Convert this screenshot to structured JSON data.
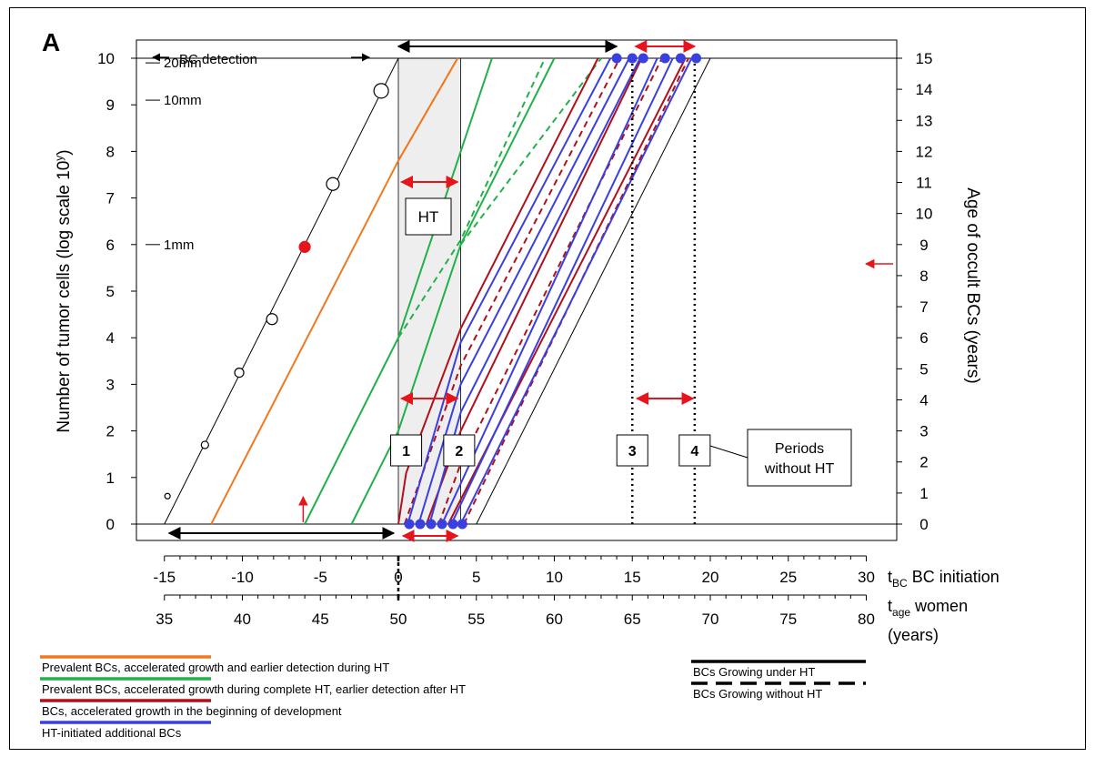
{
  "panel_label": "A",
  "chart_data": {
    "type": "line",
    "left_axis": {
      "label_main": "Number of tumor cells (log scale 10",
      "label_sup": "y",
      "label_end": ")",
      "range": [
        0,
        10
      ],
      "ticks": [
        "0",
        "1",
        "2",
        "3",
        "4",
        "5",
        "6",
        "7",
        "8",
        "9",
        "10"
      ]
    },
    "right_axis": {
      "label": "Age of occult BCs (years)",
      "range": [
        0,
        15
      ],
      "ticks": [
        "0",
        "1",
        "2",
        "3",
        "4",
        "5",
        "6",
        "7",
        "8",
        "9",
        "10",
        "11",
        "12",
        "13",
        "14",
        "15"
      ]
    },
    "x_axis_initiation": {
      "label_t": "t",
      "label_sub": "BC",
      "label_rest": " BC initiation",
      "range": [
        -15,
        30
      ],
      "ticks": [
        "-15",
        "-10",
        "-5",
        "0",
        "5",
        "10",
        "15",
        "20",
        "25",
        "30"
      ]
    },
    "x_axis_age": {
      "label_t": "t",
      "label_sub": "age",
      "label_rest": " women",
      "label_line2": "(years)",
      "ticks": [
        "35",
        "40",
        "45",
        "50",
        "55",
        "60",
        "65",
        "70",
        "75",
        "80"
      ]
    },
    "size_markers": [
      {
        "label": "20mm",
        "y": 9.9
      },
      {
        "label": "10mm",
        "y": 9.1
      },
      {
        "label": "1mm",
        "y": 6.0
      }
    ],
    "annotations": {
      "bc_detection": "BC  detection",
      "ht": "HT",
      "periods": [
        "Periods",
        "without HT"
      ],
      "numbered_boxes": [
        "1",
        "2",
        "3",
        "4"
      ]
    },
    "reference_growth_points": [
      {
        "x": -14.8,
        "y": 0.6,
        "r": 3
      },
      {
        "x": -12.4,
        "y": 1.7,
        "r": 4
      },
      {
        "x": -10.2,
        "y": 3.25,
        "r": 5
      },
      {
        "x": -8.1,
        "y": 4.4,
        "r": 6
      },
      {
        "x": -6.0,
        "y": 5.95,
        "r": 6,
        "filled": true
      },
      {
        "x": -4.2,
        "y": 7.3,
        "r": 7
      },
      {
        "x": -1.1,
        "y": 9.3,
        "r": 8
      }
    ],
    "series": [
      {
        "color": "#000000",
        "lines": [
          {
            "points": [
              [
                -15,
                0
              ],
              [
                0,
                10
              ]
            ]
          },
          {
            "points": [
              [
                5,
                0
              ],
              [
                20,
                10
              ]
            ]
          }
        ]
      },
      {
        "color": "#f07820",
        "lines": [
          {
            "points": [
              [
                -12,
                0
              ],
              [
                0,
                7.8
              ],
              [
                3.8,
                10
              ]
            ]
          },
          {
            "points": [
              [
                0,
                7.8
              ],
              [
                3.8,
                10
              ]
            ],
            "dashed": true
          }
        ]
      },
      {
        "color": "#22b04a",
        "lines": [
          {
            "points": [
              [
                -6,
                0
              ],
              [
                0,
                4
              ],
              [
                4,
                8
              ],
              [
                6,
                10
              ]
            ]
          },
          {
            "points": [
              [
                0,
                4
              ],
              [
                4,
                6.1
              ],
              [
                9.4,
                10
              ]
            ],
            "dashed": true
          },
          {
            "points": [
              [
                -3,
                0
              ],
              [
                0,
                2
              ],
              [
                4,
                6
              ],
              [
                10,
                10
              ]
            ]
          },
          {
            "points": [
              [
                4,
                6
              ],
              [
                13,
                10
              ]
            ],
            "dashed": true
          }
        ]
      },
      {
        "color": "#b0101a",
        "lines": [
          {
            "points": [
              [
                0,
                0
              ],
              [
                0.5,
                1.1
              ],
              [
                4,
                4.2
              ],
              [
                12.8,
                10
              ]
            ]
          },
          {
            "points": [
              [
                0.4,
                0
              ],
              [
                4,
                3.4
              ],
              [
                14.2,
                10
              ]
            ],
            "dashed": true
          },
          {
            "points": [
              [
                1.8,
                0
              ],
              [
                4,
                2
              ],
              [
                15.6,
                10
              ]
            ]
          },
          {
            "points": [
              [
                2.6,
                0
              ],
              [
                4,
                1.3
              ],
              [
                16.9,
                10
              ]
            ],
            "dashed": true
          },
          {
            "points": [
              [
                3.2,
                0
              ],
              [
                18.4,
                10
              ]
            ]
          },
          {
            "points": [
              [
                4.2,
                0
              ],
              [
                18.6,
                10
              ]
            ],
            "dashed": true
          }
        ]
      },
      {
        "color": "#3a3fe0",
        "lines": [
          {
            "points": [
              [
                0.6,
                0
              ],
              [
                4,
                3.9
              ],
              [
                13.6,
                10
              ]
            ]
          },
          {
            "points": [
              [
                1.3,
                0
              ],
              [
                4,
                3
              ],
              [
                14.8,
                10
              ]
            ]
          },
          {
            "points": [
              [
                2,
                0
              ],
              [
                4,
                2.4
              ],
              [
                15.5,
                10
              ]
            ]
          },
          {
            "points": [
              [
                2.8,
                0
              ],
              [
                16.6,
                10
              ]
            ]
          },
          {
            "points": [
              [
                3.4,
                0
              ],
              [
                17.6,
                10
              ]
            ]
          },
          {
            "points": [
              [
                4,
                0
              ],
              [
                18.8,
                10
              ]
            ]
          }
        ]
      }
    ],
    "ht_period": [
      0,
      4
    ],
    "detection_markers_bottom": [
      0.7,
      1.4,
      2.1,
      2.8,
      3.5,
      4.1
    ],
    "detection_markers_top": [
      14.0,
      15.0,
      15.7,
      17.1,
      18.1,
      19.1
    ],
    "legend": [
      {
        "label": "Prevalent BCs, accelerated growth and earlier detection during HT",
        "color": "#f07820"
      },
      {
        "label": "Prevalent BCs, accelerated growth during complete HT, earlier detection after HT",
        "color": "#22b04a"
      },
      {
        "label": "BCs, accelerated growth in the beginning of development",
        "color": "#b0101a"
      },
      {
        "label": "HT-initiated additional BCs",
        "color": "#3a3fe0"
      }
    ],
    "line_style_legend": [
      {
        "label": "BCs Growing under HT",
        "style": "solid"
      },
      {
        "label": "BCs Growing without HT",
        "style": "dashed"
      }
    ]
  }
}
